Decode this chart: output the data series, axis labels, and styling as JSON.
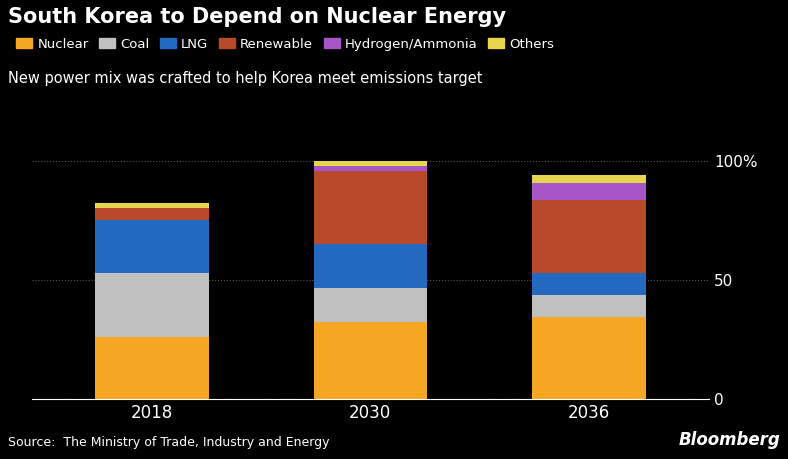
{
  "title": "South Korea to Depend on Nuclear Energy",
  "subtitle": "New power mix was crafted to help Korea meet emissions target",
  "source": "Source:  The Ministry of Trade, Industry and Energy",
  "bloomberg": "Bloomberg",
  "years": [
    "2018",
    "2030",
    "2036"
  ],
  "categories": [
    "Nuclear",
    "Coal",
    "LNG",
    "Renewable",
    "Hydrogen/Ammonia",
    "Others"
  ],
  "colors": [
    "#F5A623",
    "#C0C0C0",
    "#2469C0",
    "#B84A2A",
    "#A855C8",
    "#E8D44D"
  ],
  "values": {
    "Nuclear": [
      26.0,
      32.4,
      34.6
    ],
    "Coal": [
      26.8,
      14.4,
      9.1
    ],
    "LNG": [
      22.2,
      18.2,
      9.3
    ],
    "Renewable": [
      5.2,
      30.6,
      30.6
    ],
    "Hydrogen/Ammonia": [
      0.0,
      2.1,
      7.1
    ],
    "Others": [
      2.1,
      2.3,
      3.3
    ]
  },
  "bar_totals": [
    82.3,
    100.0,
    94.0
  ],
  "ylim": [
    0,
    100
  ],
  "yticks": [
    0,
    50,
    100
  ],
  "ytick_labels": [
    "0",
    "50",
    "100%"
  ],
  "background_color": "#000000",
  "text_color": "#ffffff",
  "grid_color": "#555555",
  "bar_width": 0.52,
  "title_fontsize": 15,
  "subtitle_fontsize": 10.5,
  "legend_fontsize": 9.5,
  "tick_fontsize": 11,
  "source_fontsize": 9
}
